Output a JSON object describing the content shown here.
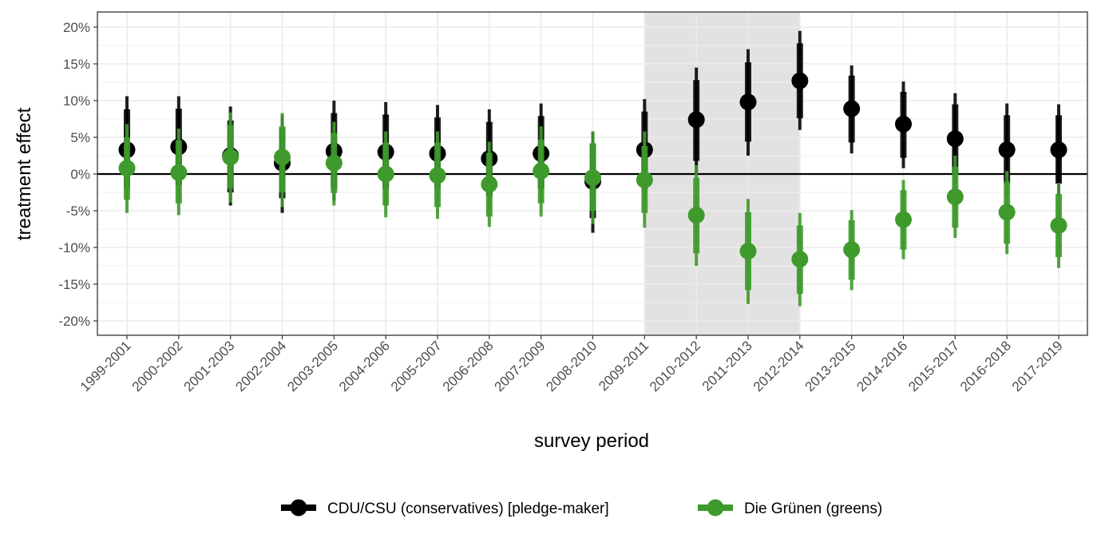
{
  "chart_data": {
    "type": "scatter",
    "title": "",
    "xlabel": "survey period",
    "ylabel": "treatment effect",
    "categories": [
      "1999-2001",
      "2000-2002",
      "2001-2003",
      "2002-2004",
      "2003-2005",
      "2004-2006",
      "2005-2007",
      "2006-2008",
      "2007-2009",
      "2008-2010",
      "2009-2011",
      "2010-2012",
      "2011-2013",
      "2012-2014",
      "2013-2015",
      "2014-2016",
      "2015-2017",
      "2016-2018",
      "2017-2019"
    ],
    "ylim": [
      -22,
      22
    ],
    "yticks": [
      -20,
      -15,
      -10,
      -5,
      0,
      5,
      10,
      15,
      20
    ],
    "ytick_labels": [
      "-20%",
      "-15%",
      "-10%",
      "-5%",
      "0%",
      "5%",
      "10%",
      "15%",
      "20%"
    ],
    "grid": true,
    "legend_position": "bottom",
    "shaded_region": {
      "from": "2009-2011",
      "to": "2012-2014"
    },
    "series": [
      {
        "name": "CDU/CSU (conservatives) [pledge-maker]",
        "color": "#000000",
        "values": [
          3.3,
          3.7,
          2.5,
          1.5,
          3.1,
          3.0,
          2.8,
          2.1,
          2.8,
          -1.0,
          3.3,
          7.4,
          9.8,
          12.7,
          8.9,
          6.8,
          4.8,
          3.3,
          3.3
        ],
        "ci_inner": [
          [
            -2.0,
            8.8
          ],
          [
            -1.5,
            8.9
          ],
          [
            -2.5,
            7.3
          ],
          [
            -3.3,
            6.2
          ],
          [
            -2.0,
            8.3
          ],
          [
            -2.0,
            8.1
          ],
          [
            -2.0,
            7.7
          ],
          [
            -3.0,
            7.1
          ],
          [
            -2.0,
            7.9
          ],
          [
            -6.0,
            4.0
          ],
          [
            -2.0,
            8.5
          ],
          [
            1.8,
            12.8
          ],
          [
            4.4,
            15.2
          ],
          [
            7.6,
            17.8
          ],
          [
            4.3,
            13.4
          ],
          [
            2.2,
            11.2
          ],
          [
            0.0,
            9.5
          ],
          [
            -1.3,
            8.0
          ],
          [
            -1.3,
            8.0
          ]
        ],
        "ci_outer": [
          [
            -3.5,
            10.6
          ],
          [
            -3.2,
            10.6
          ],
          [
            -4.3,
            9.2
          ],
          [
            -5.3,
            8.0
          ],
          [
            -3.6,
            10.0
          ],
          [
            -3.8,
            9.8
          ],
          [
            -3.7,
            9.4
          ],
          [
            -4.6,
            8.8
          ],
          [
            -3.7,
            9.6
          ],
          [
            -8.0,
            5.8
          ],
          [
            -3.6,
            10.2
          ],
          [
            0.0,
            14.5
          ],
          [
            2.5,
            17.0
          ],
          [
            6.0,
            19.5
          ],
          [
            2.8,
            14.8
          ],
          [
            0.8,
            12.6
          ],
          [
            -1.5,
            11.0
          ],
          [
            -2.9,
            9.6
          ],
          [
            -2.9,
            9.5
          ]
        ]
      },
      {
        "name": "Die Grünen (greens)",
        "color": "#3f9a2c",
        "values": [
          0.8,
          0.2,
          2.3,
          2.3,
          1.5,
          0.0,
          -0.2,
          -1.4,
          0.4,
          -0.5,
          -0.8,
          -5.6,
          -10.5,
          -11.6,
          -10.3,
          -6.2,
          -3.1,
          -5.2,
          -7.0
        ],
        "ci_inner": [
          [
            -3.5,
            5.0
          ],
          [
            -4.0,
            4.6
          ],
          [
            -2.0,
            6.7
          ],
          [
            -2.5,
            6.5
          ],
          [
            -2.6,
            5.6
          ],
          [
            -4.3,
            4.3
          ],
          [
            -4.5,
            4.3
          ],
          [
            -5.8,
            2.9
          ],
          [
            -4.0,
            4.7
          ],
          [
            -5.0,
            4.2
          ],
          [
            -5.3,
            3.8
          ],
          [
            -10.8,
            -0.5
          ],
          [
            -15.8,
            -5.2
          ],
          [
            -16.3,
            -7.0
          ],
          [
            -14.4,
            -6.3
          ],
          [
            -10.3,
            -2.2
          ],
          [
            -7.3,
            1.0
          ],
          [
            -9.5,
            -1.0
          ],
          [
            -11.3,
            -2.7
          ]
        ],
        "ci_outer": [
          [
            -5.3,
            6.8
          ],
          [
            -5.6,
            6.2
          ],
          [
            -3.9,
            8.4
          ],
          [
            -4.5,
            8.3
          ],
          [
            -4.3,
            7.1
          ],
          [
            -5.9,
            5.8
          ],
          [
            -6.1,
            5.8
          ],
          [
            -7.2,
            4.4
          ],
          [
            -5.8,
            6.5
          ],
          [
            -6.8,
            5.8
          ],
          [
            -7.3,
            5.8
          ],
          [
            -12.5,
            1.2
          ],
          [
            -17.7,
            -3.4
          ],
          [
            -18.0,
            -5.3
          ],
          [
            -15.8,
            -4.9
          ],
          [
            -11.6,
            -0.8
          ],
          [
            -8.7,
            2.5
          ],
          [
            -10.9,
            0.4
          ],
          [
            -12.8,
            -1.2
          ]
        ]
      }
    ]
  }
}
